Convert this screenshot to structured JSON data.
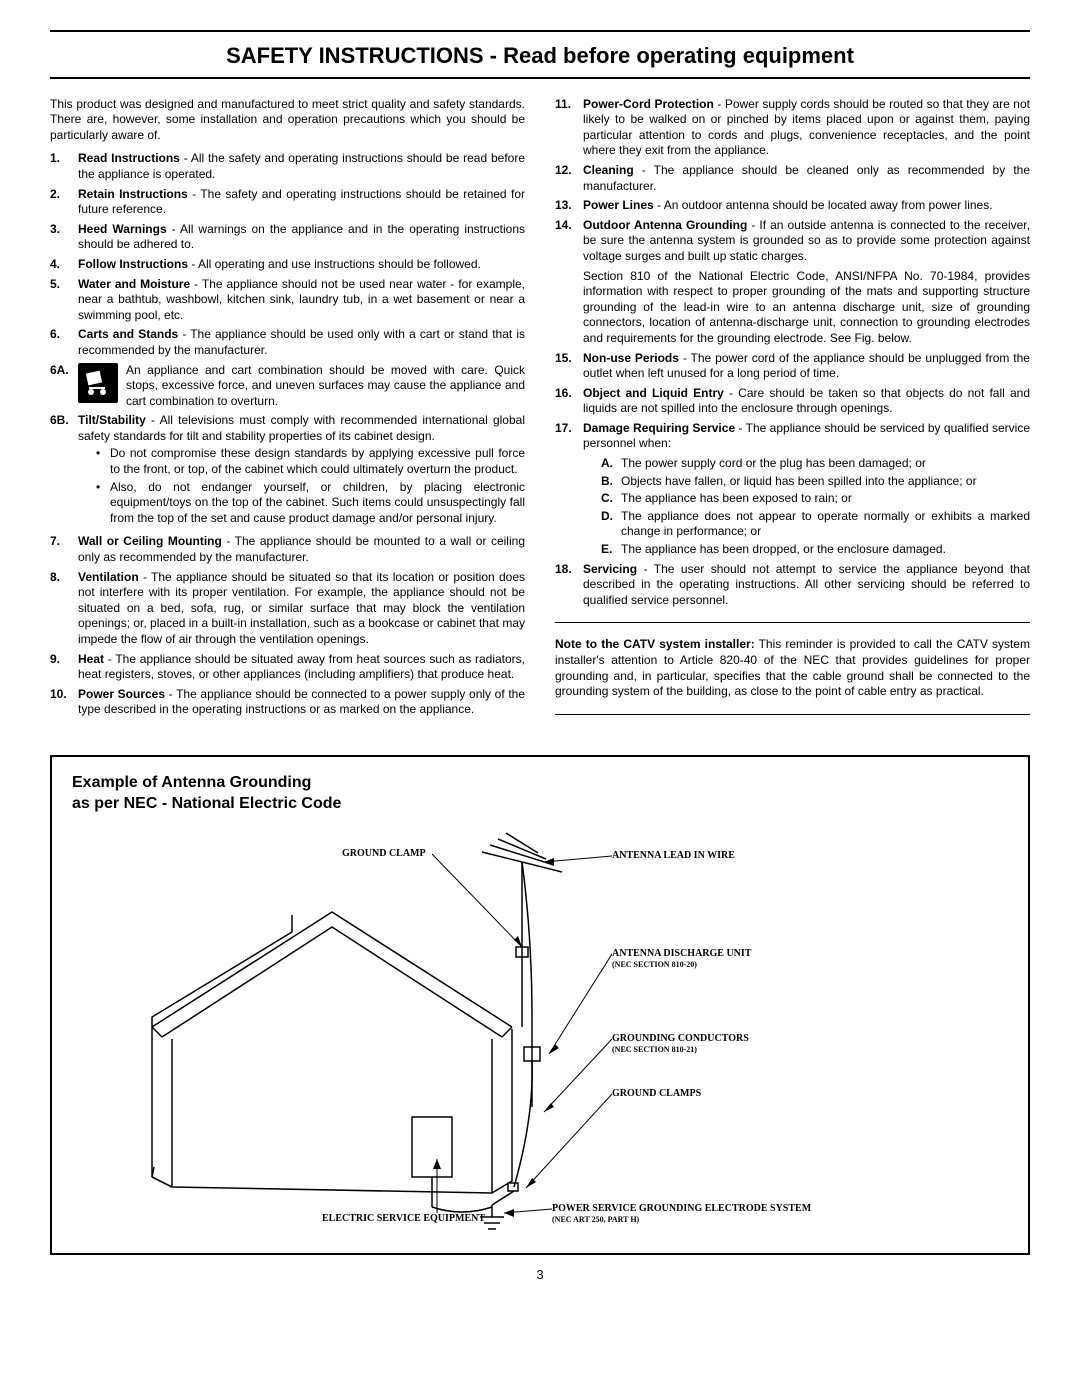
{
  "title": "SAFETY INSTRUCTIONS - Read before operating equipment",
  "intro": "This product was designed and manufactured to meet strict quality and safety standards. There are, however, some installation and operation precautions which you should be particularly aware of.",
  "left": [
    {
      "n": "1.",
      "h": "Read Instructions",
      "t": " - All the safety and operating instructions should be read before the appliance is operated."
    },
    {
      "n": "2.",
      "h": "Retain Instructions",
      "t": " - The safety and operating instructions should be retained for future reference."
    },
    {
      "n": "3.",
      "h": "Heed Warnings",
      "t": " - All warnings on the appliance and in the operating instructions should be adhered to."
    },
    {
      "n": "4.",
      "h": "Follow Instructions",
      "t": " - All operating and use instructions should be followed."
    },
    {
      "n": "5.",
      "h": "Water and Moisture",
      "t": " - The appliance should not be used near water - for example, near a bathtub, washbowl, kitchen sink, laundry tub, in a wet basement or near a swimming pool, etc."
    },
    {
      "n": "6.",
      "h": "Carts and Stands",
      "t": " - The appliance should be used only with a cart or stand that is recommended by the manufacturer."
    }
  ],
  "six_a": "An appliance and cart combination should be moved with care. Quick stops, excessive force, and uneven surfaces may cause the appliance and cart combination to overturn.",
  "six_b": {
    "h": "Tilt/Stability",
    "t": " - All televisions must comply with recommended international global safety standards for tilt and stability properties of its cabinet design."
  },
  "six_b_bul": [
    "Do not compromise these design standards by applying excessive pull force to the front, or top, of the cabinet which could ultimately overturn the product.",
    "Also, do not endanger yourself, or children, by placing electronic equipment/toys on the top of the cabinet. Such items could unsuspectingly fall from the top of the set and cause product damage and/or personal injury."
  ],
  "left2": [
    {
      "n": "7.",
      "h": "Wall or Ceiling Mounting",
      "t": " - The appliance should be mounted to a wall or ceiling only as recommended by the manufacturer."
    },
    {
      "n": "8.",
      "h": "Ventilation",
      "t": " - The appliance should be situated so that its location or position does not interfere with its proper ventilation. For example, the appliance should not be situated on a bed, sofa, rug, or similar surface that may block the ventilation openings; or, placed in a built-in installation, such as a bookcase or cabinet that may impede the flow of air through the ventilation openings."
    },
    {
      "n": "9.",
      "h": "Heat",
      "t": " - The appliance should be situated away from heat sources such as radiators, heat registers, stoves, or other appliances (including amplifiers) that produce heat."
    },
    {
      "n": "10.",
      "h": "Power Sources",
      "t": " - The appliance should be connected to a power supply only of the type described in the operating instructions or as marked on the appliance."
    }
  ],
  "right": [
    {
      "n": "11.",
      "h": "Power-Cord Protection",
      "t": " - Power supply cords should be routed so that they are not likely to be walked on or pinched by items placed upon or against them, paying particular attention to cords and plugs, convenience receptacles, and the point where they exit from the appliance."
    },
    {
      "n": "12.",
      "h": "Cleaning",
      "t": " - The appliance should be cleaned only as recommended by the manufacturer."
    },
    {
      "n": "13.",
      "h": "Power Lines",
      "t": " - An outdoor antenna should be located away from power lines."
    },
    {
      "n": "14.",
      "h": "Outdoor Antenna Grounding",
      "t": " - If an outside antenna is connected to the receiver, be sure the antenna system is grounded so as to provide some protection against voltage surges and built up static charges."
    }
  ],
  "r14_extra": "Section 810 of the National Electric Code, ANSI/NFPA No. 70-1984, provides information with respect to proper grounding of the mats and supporting structure grounding of the lead-in wire to an antenna discharge unit, size of grounding connectors, location of antenna-discharge unit, connection to grounding electrodes and requirements for the grounding electrode. See Fig. below.",
  "right2": [
    {
      "n": "15.",
      "h": "Non-use Periods",
      "t": " - The power cord of the appliance should be unplugged from the outlet when left unused for a long period of time."
    },
    {
      "n": "16.",
      "h": "Object and Liquid Entry",
      "t": " - Care should be taken so that objects do not fall and liquids are not spilled into the enclosure through openings."
    },
    {
      "n": "17.",
      "h": "Damage Requiring Service",
      "t": " - The appliance should be serviced by qualified service personnel when:"
    }
  ],
  "r17_sub": [
    {
      "l": "A.",
      "t": "The power supply cord or the plug has been damaged; or"
    },
    {
      "l": "B.",
      "t": "Objects have fallen, or liquid has been spilled into the appliance; or"
    },
    {
      "l": "C.",
      "t": "The appliance has been exposed to rain; or"
    },
    {
      "l": "D.",
      "t": "The appliance does not appear to operate normally or exhibits a marked change in performance; or"
    },
    {
      "l": "E.",
      "t": "The appliance has been dropped, or the enclosure damaged."
    }
  ],
  "right3": [
    {
      "n": "18.",
      "h": "Servicing",
      "t": " - The user should not attempt to service the appliance beyond that described in the operating instructions. All other servicing should be referred to qualified service personnel."
    }
  ],
  "note_title": "Note to the CATV system installer:",
  "note": " This reminder is provided to call the CATV system installer's attention to Article 820-40 of the NEC  that provides guidelines for proper grounding and, in particular, specifies that the cable ground shall be connected to the grounding system of the building, as close to the point of cable entry as practical.",
  "diagram": {
    "title1": "Example of Antenna Grounding",
    "title2": "as per NEC - National Electric Code",
    "labels": {
      "ground_clamp_top": "GROUND CLAMP",
      "antenna_lead": "ANTENNA LEAD IN WIRE",
      "discharge": "ANTENNA DISCHARGE UNIT",
      "discharge_sec": "(NEC SECTION 810-20)",
      "conductors": "GROUNDING CONDUCTORS",
      "conductors_sec": "(NEC SECTION 810-21)",
      "ground_clamps": "GROUND CLAMPS",
      "electric_service": "ELECTRIC SERVICE EQUIPMENT",
      "power_service": "POWER SERVICE GROUNDING ELECTRODE SYSTEM",
      "power_service_sec": "(NEC ART 250, PART H)"
    }
  },
  "page_number": "3"
}
